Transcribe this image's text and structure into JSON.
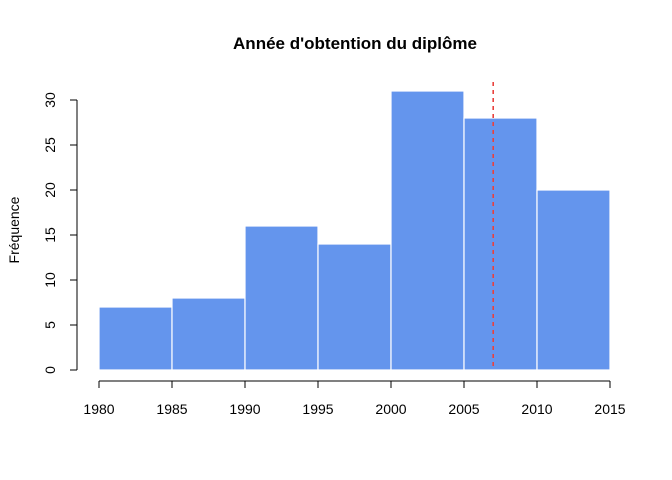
{
  "chart_data": {
    "type": "bar",
    "title": "Année d'obtention du diplôme",
    "xlabel": "",
    "ylabel": "Fréquence",
    "bins": [
      {
        "start": 1980,
        "end": 1985,
        "value": 7
      },
      {
        "start": 1985,
        "end": 1990,
        "value": 8
      },
      {
        "start": 1990,
        "end": 1995,
        "value": 16
      },
      {
        "start": 1995,
        "end": 2000,
        "value": 14
      },
      {
        "start": 2000,
        "end": 2005,
        "value": 31
      },
      {
        "start": 2005,
        "end": 2010,
        "value": 28
      },
      {
        "start": 2010,
        "end": 2015,
        "value": 20
      }
    ],
    "xlim": [
      1980,
      2015
    ],
    "ylim": [
      0,
      32
    ],
    "x_ticks": [
      "1980",
      "1985",
      "1990",
      "1995",
      "2000",
      "2005",
      "2010",
      "2015"
    ],
    "y_ticks": [
      "0",
      "5",
      "10",
      "15",
      "20",
      "25",
      "30"
    ],
    "reference_line": {
      "x": 2007,
      "color": "#e8423e",
      "style": "dashed"
    },
    "bar_color": "#6495ed",
    "grid": false,
    "legend": "none"
  }
}
